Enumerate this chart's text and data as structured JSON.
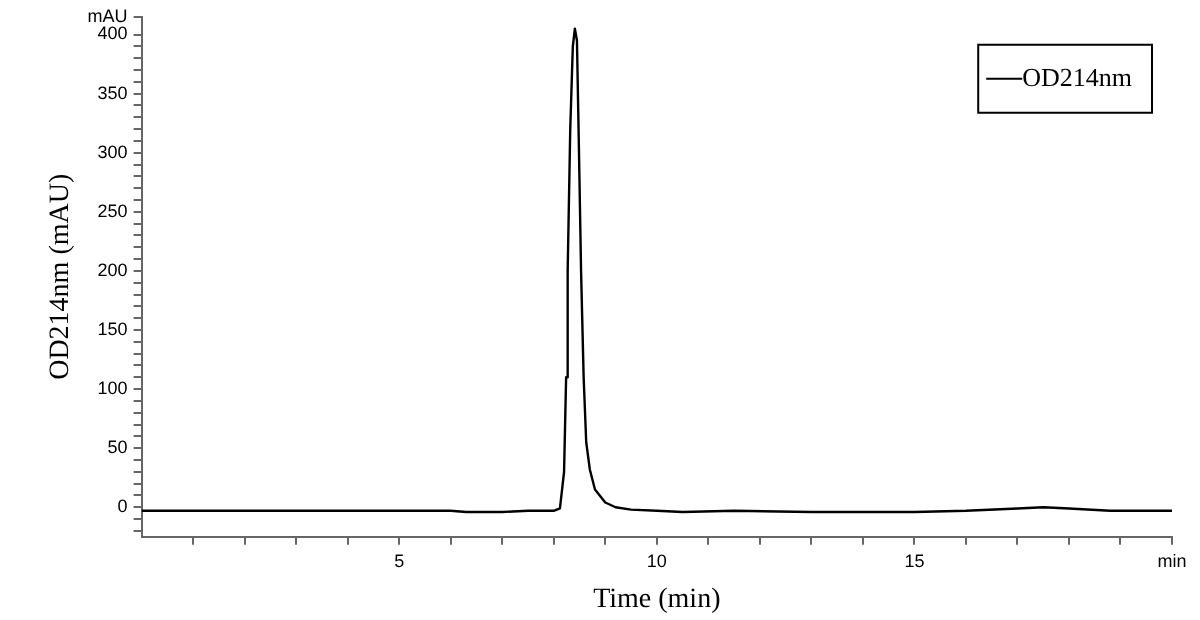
{
  "chart_data": {
    "type": "line",
    "xlabel": "Time (min)",
    "ylabel": "OD214nm (mAU)",
    "xlim": [
      0,
      20
    ],
    "xticks": [
      {
        "value": 1,
        "label": null
      },
      {
        "value": 2,
        "label": null
      },
      {
        "value": 3,
        "label": null
      },
      {
        "value": 4,
        "label": null
      },
      5,
      {
        "value": 6,
        "label": null
      },
      {
        "value": 7,
        "label": null
      },
      {
        "value": 8,
        "label": null
      },
      {
        "value": 9,
        "label": null
      },
      10,
      {
        "value": 11,
        "label": null
      },
      {
        "value": 12,
        "label": null
      },
      {
        "value": 13,
        "label": null
      },
      {
        "value": 14,
        "label": null
      },
      15,
      {
        "value": 16,
        "label": null
      },
      {
        "value": 17,
        "label": null
      },
      {
        "value": 18,
        "label": null
      },
      {
        "value": 19,
        "label": null
      },
      {
        "value": 20,
        "label": "min"
      }
    ],
    "ylim": [
      -25,
      415
    ],
    "yticks": [
      {
        "value": -20,
        "label": null
      },
      {
        "value": -10,
        "label": null
      },
      0,
      {
        "value": 10,
        "label": null
      },
      {
        "value": 20,
        "label": null
      },
      {
        "value": 30,
        "label": null
      },
      {
        "value": 40,
        "label": null
      },
      50,
      {
        "value": 60,
        "label": null
      },
      {
        "value": 70,
        "label": null
      },
      {
        "value": 80,
        "label": null
      },
      {
        "value": 90,
        "label": null
      },
      100,
      {
        "value": 110,
        "label": null
      },
      {
        "value": 120,
        "label": null
      },
      {
        "value": 130,
        "label": null
      },
      {
        "value": 140,
        "label": null
      },
      150,
      {
        "value": 160,
        "label": null
      },
      {
        "value": 170,
        "label": null
      },
      {
        "value": 180,
        "label": null
      },
      {
        "value": 190,
        "label": null
      },
      200,
      {
        "value": 210,
        "label": null
      },
      {
        "value": 220,
        "label": null
      },
      {
        "value": 230,
        "label": null
      },
      {
        "value": 240,
        "label": null
      },
      250,
      {
        "value": 260,
        "label": null
      },
      {
        "value": 270,
        "label": null
      },
      {
        "value": 280,
        "label": null
      },
      {
        "value": 290,
        "label": null
      },
      300,
      {
        "value": 310,
        "label": null
      },
      {
        "value": 320,
        "label": null
      },
      {
        "value": 330,
        "label": null
      },
      {
        "value": 340,
        "label": null
      },
      350,
      {
        "value": 360,
        "label": null
      },
      {
        "value": 370,
        "label": null
      },
      {
        "value": 380,
        "label": null
      },
      {
        "value": 390,
        "label": null
      },
      400,
      {
        "value": 415,
        "label": "mAU"
      }
    ],
    "grid": false,
    "legend": "top right",
    "marker": "none",
    "line_style": "solid",
    "series": [
      {
        "name": "OD214nm",
        "color": "#000000",
        "x": [
          0,
          2,
          4,
          6,
          6.3,
          7,
          7.5,
          8.0,
          8.12,
          8.2,
          8.24,
          8.27,
          8.32,
          8.37,
          8.41,
          8.45,
          8.49,
          8.53,
          8.58,
          8.63,
          8.7,
          8.8,
          9.0,
          9.2,
          9.5,
          10,
          10.5,
          11.5,
          13,
          15,
          16,
          17,
          17.5,
          18,
          18.8,
          20
        ],
        "values": [
          -3,
          -3,
          -3,
          -3,
          -4,
          -4,
          -3,
          -3,
          -1,
          30,
          110,
          200,
          320,
          390,
          405,
          395,
          300,
          200,
          110,
          55,
          32,
          15,
          4,
          0,
          -2,
          -3,
          -4,
          -3,
          -4,
          -4,
          -3,
          -1,
          0,
          -1,
          -3,
          -3
        ]
      }
    ]
  }
}
